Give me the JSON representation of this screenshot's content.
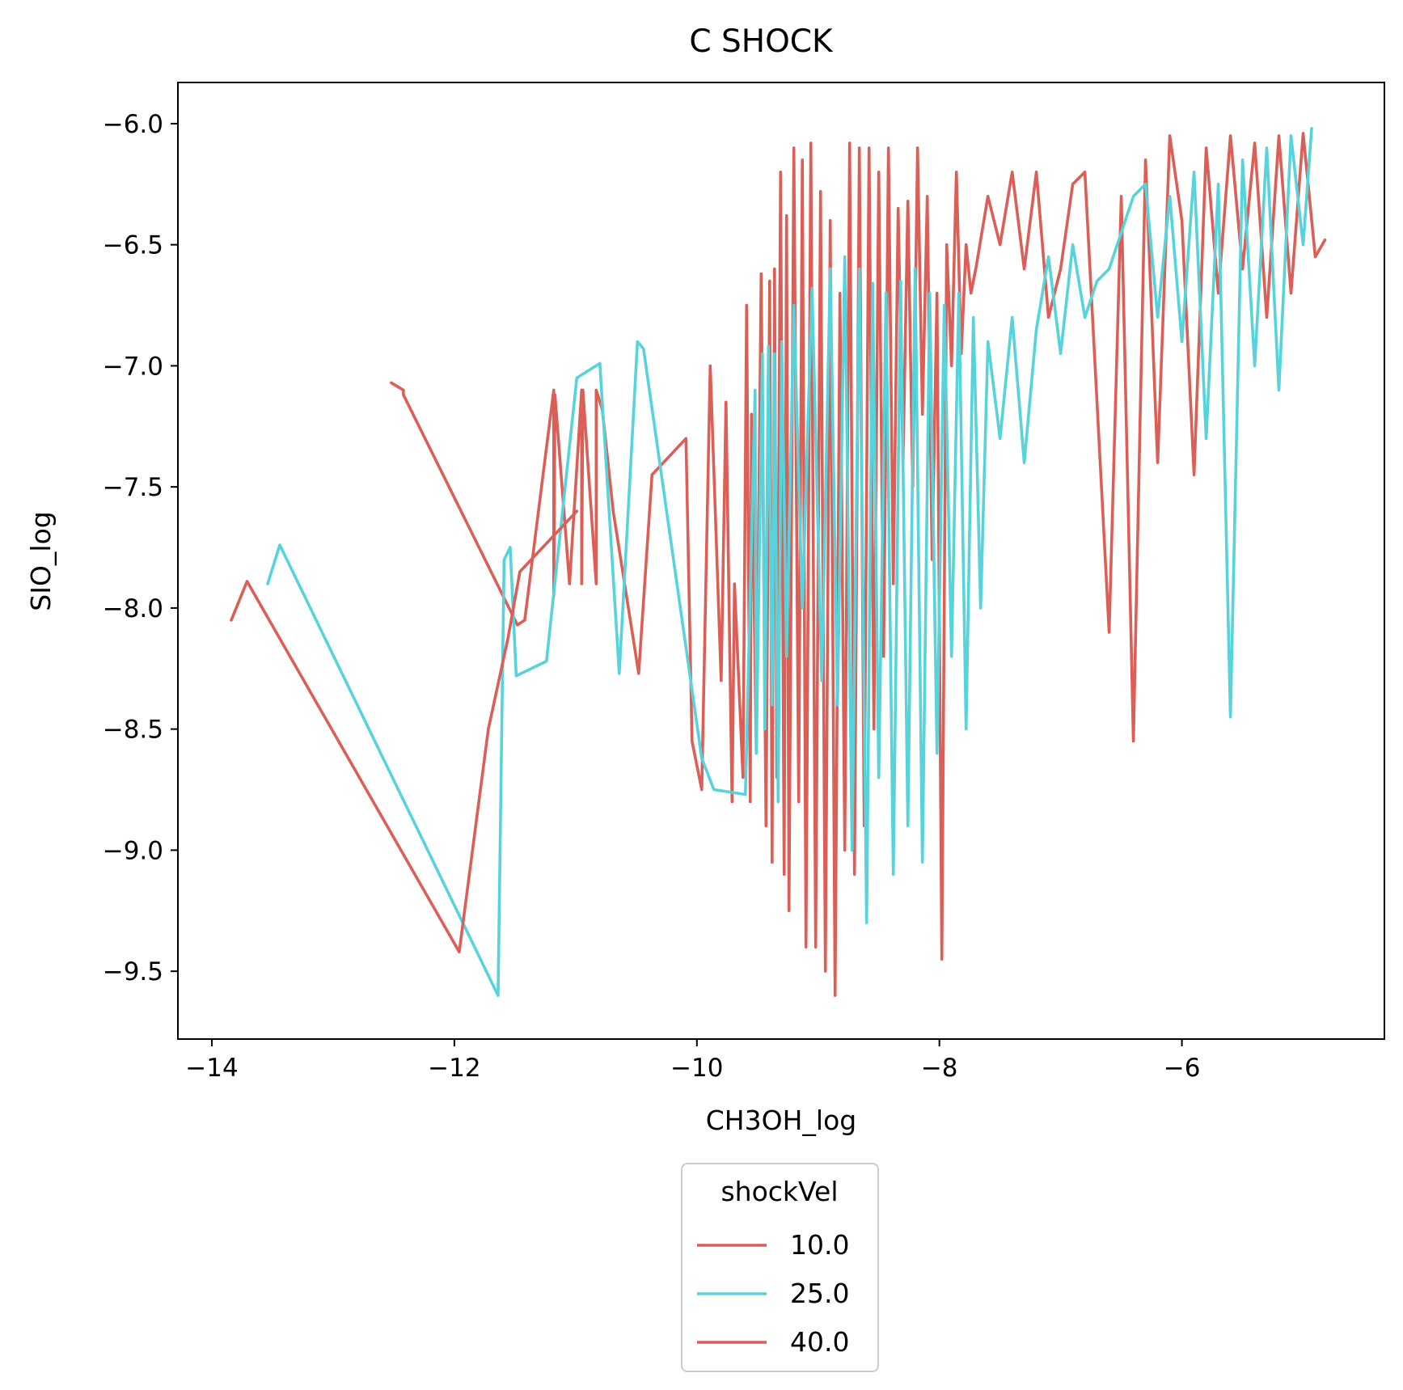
{
  "chart_data": {
    "type": "line",
    "title": "C SHOCK",
    "xlabel": "CH3OH_log",
    "ylabel": "SIO_log",
    "xlim": [
      -14.28,
      -4.33
    ],
    "ylim": [
      -9.78,
      -5.83
    ],
    "xticks": [
      -14,
      -12,
      -10,
      -8,
      -6
    ],
    "yticks": [
      -6.0,
      -6.5,
      -7.0,
      -7.5,
      -8.0,
      -8.5,
      -9.0,
      -9.5
    ],
    "xtick_labels": [
      "−14",
      "−12",
      "−10",
      "−8",
      "−6"
    ],
    "ytick_labels": [
      "−6.0",
      "−6.5",
      "−7.0",
      "−7.5",
      "−8.0",
      "−8.5",
      "−9.0",
      "−9.5"
    ],
    "grid": false,
    "legend": {
      "title": "shockVel",
      "placement": "bottom-center-outside"
    },
    "series": [
      {
        "name": "10.0",
        "color": "#db5f57",
        "x": [
          -12.52,
          -12.42,
          -12.42,
          -11.48,
          -11.42,
          -11.18,
          -11.18,
          -11.17,
          -11.05,
          -10.95,
          -10.95,
          -10.94,
          -10.83,
          -10.83,
          -10.78,
          -10.69,
          -10.48,
          -10.37,
          -10.09,
          -10.04,
          -9.96,
          -9.89,
          -9.8,
          -9.76,
          -9.71,
          -9.69,
          -9.62,
          -9.59,
          -9.56,
          -9.55,
          -9.51,
          -9.47,
          -9.43,
          -9.4,
          -9.38,
          -9.36,
          -9.34,
          -9.31,
          -9.28,
          -9.26,
          -9.24,
          -9.2,
          -9.16,
          -9.13,
          -9.1,
          -9.06,
          -9.02,
          -8.98,
          -8.94,
          -8.9,
          -8.86,
          -8.82,
          -8.78,
          -8.74,
          -8.7,
          -8.66,
          -8.62,
          -8.58,
          -8.54,
          -8.5,
          -8.46,
          -8.42,
          -8.38,
          -8.34,
          -8.3,
          -8.26,
          -8.22,
          -8.18,
          -8.14,
          -8.1,
          -8.06,
          -8.02,
          -7.98,
          -7.94,
          -7.9,
          -7.86,
          -7.82,
          -7.78,
          -7.74,
          -7.7,
          -7.6,
          -7.5,
          -7.4,
          -7.3,
          -7.2,
          -7.1,
          -7.0,
          -6.9,
          -6.8,
          -6.6,
          -6.5,
          -6.4,
          -6.3,
          -6.2,
          -6.1,
          -6.0,
          -5.9,
          -5.8,
          -5.7,
          -5.6,
          -5.5,
          -5.4,
          -5.3,
          -5.2,
          -5.1,
          -5.0,
          -4.9,
          -4.82
        ],
        "y": [
          -7.07,
          -7.1,
          -7.12,
          -8.07,
          -8.05,
          -7.1,
          -7.95,
          -7.12,
          -7.9,
          -7.1,
          -7.9,
          -7.1,
          -7.9,
          -7.1,
          -7.18,
          -7.6,
          -8.27,
          -7.45,
          -7.3,
          -8.55,
          -8.75,
          -7.0,
          -8.3,
          -7.15,
          -8.8,
          -7.9,
          -8.7,
          -6.75,
          -8.8,
          -7.2,
          -8.6,
          -6.62,
          -8.9,
          -6.65,
          -9.05,
          -6.6,
          -8.7,
          -6.2,
          -9.1,
          -6.38,
          -9.25,
          -6.1,
          -8.8,
          -6.15,
          -9.4,
          -6.08,
          -9.4,
          -6.28,
          -9.5,
          -6.4,
          -9.6,
          -6.7,
          -9.0,
          -6.08,
          -9.1,
          -6.1,
          -8.9,
          -6.1,
          -8.5,
          -6.2,
          -8.2,
          -6.1,
          -7.9,
          -6.35,
          -7.4,
          -6.32,
          -7.5,
          -6.1,
          -7.2,
          -6.3,
          -7.8,
          -6.7,
          -9.45,
          -6.5,
          -7.0,
          -6.2,
          -6.95,
          -6.5,
          -6.7,
          -6.6,
          -6.3,
          -6.5,
          -6.2,
          -6.6,
          -6.2,
          -6.8,
          -6.6,
          -6.25,
          -6.2,
          -8.1,
          -6.3,
          -8.55,
          -6.15,
          -7.4,
          -6.05,
          -6.4,
          -7.45,
          -6.1,
          -6.7,
          -6.05,
          -6.6,
          -6.08,
          -6.8,
          -6.05,
          -6.7,
          -6.04,
          -6.55,
          -6.48
        ]
      },
      {
        "name": "25.0",
        "color": "#57d3db",
        "x": [
          -13.54,
          -13.44,
          -11.64,
          -11.59,
          -11.54,
          -11.49,
          -11.24,
          -10.99,
          -10.8,
          -10.64,
          -10.49,
          -10.44,
          -9.96,
          -9.86,
          -9.6,
          -9.52,
          -9.51,
          -9.46,
          -9.44,
          -9.41,
          -9.38,
          -9.36,
          -9.33,
          -9.3,
          -9.26,
          -9.2,
          -9.13,
          -9.05,
          -8.97,
          -8.9,
          -8.84,
          -8.78,
          -8.72,
          -8.66,
          -8.6,
          -8.55,
          -8.5,
          -8.44,
          -8.38,
          -8.32,
          -8.26,
          -8.2,
          -8.14,
          -8.08,
          -8.02,
          -7.96,
          -7.9,
          -7.84,
          -7.78,
          -7.72,
          -7.66,
          -7.6,
          -7.5,
          -7.4,
          -7.3,
          -7.2,
          -7.1,
          -7.0,
          -6.9,
          -6.8,
          -6.7,
          -6.6,
          -6.5,
          -6.4,
          -6.3,
          -6.2,
          -6.1,
          -6.0,
          -5.9,
          -5.8,
          -5.7,
          -5.6,
          -5.5,
          -5.4,
          -5.3,
          -5.2,
          -5.1,
          -5.0,
          -4.93
        ],
        "y": [
          -7.9,
          -7.74,
          -9.6,
          -7.8,
          -7.75,
          -8.28,
          -8.22,
          -7.05,
          -6.99,
          -8.27,
          -6.9,
          -6.93,
          -8.62,
          -8.75,
          -8.77,
          -7.1,
          -8.6,
          -6.95,
          -8.5,
          -6.92,
          -8.4,
          -6.95,
          -8.8,
          -6.9,
          -8.2,
          -6.75,
          -8.0,
          -6.68,
          -8.3,
          -6.6,
          -8.4,
          -6.55,
          -9.0,
          -6.6,
          -9.3,
          -6.66,
          -8.7,
          -6.7,
          -9.1,
          -6.65,
          -8.9,
          -6.6,
          -9.05,
          -6.7,
          -8.6,
          -6.75,
          -8.2,
          -6.7,
          -8.5,
          -6.8,
          -8.0,
          -6.9,
          -7.3,
          -6.8,
          -7.4,
          -6.85,
          -6.55,
          -6.95,
          -6.5,
          -6.8,
          -6.65,
          -6.6,
          -6.45,
          -6.3,
          -6.25,
          -6.8,
          -6.3,
          -6.9,
          -6.2,
          -7.3,
          -6.25,
          -8.45,
          -6.15,
          -7.0,
          -6.1,
          -7.1,
          -6.05,
          -6.5,
          -6.02
        ]
      },
      {
        "name": "40.0",
        "color": "#db5f57",
        "x": [
          -13.84,
          -13.71,
          -11.96,
          -11.72,
          -11.56,
          -11.46,
          -10.99
        ],
        "y": [
          -8.05,
          -7.89,
          -9.42,
          -8.5,
          -8.13,
          -7.85,
          -7.6
        ]
      }
    ]
  }
}
